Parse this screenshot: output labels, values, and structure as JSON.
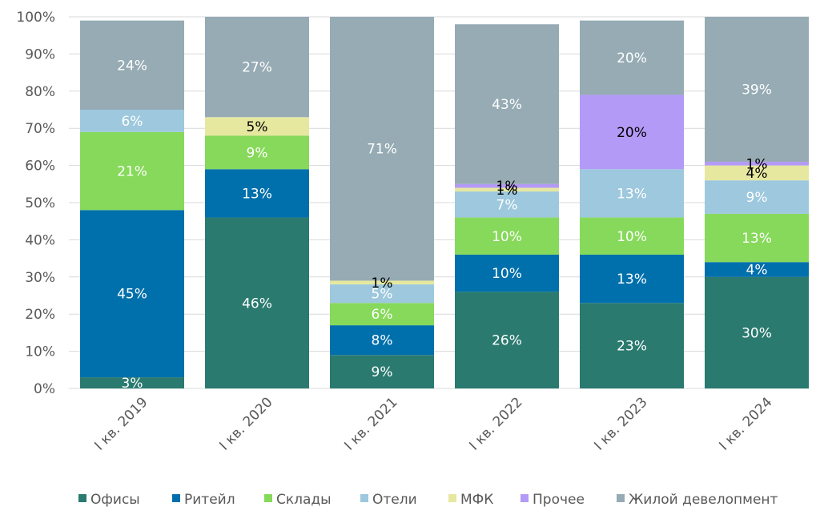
{
  "chart_data": {
    "type": "bar",
    "stacked": true,
    "title": "",
    "xlabel": "",
    "ylabel": "",
    "ylim": [
      0,
      100
    ],
    "ytick_values": [
      0,
      10,
      20,
      30,
      40,
      50,
      60,
      70,
      80,
      90,
      100
    ],
    "ytick_labels": [
      "0%",
      "10%",
      "20%",
      "30%",
      "40%",
      "50%",
      "60%",
      "70%",
      "80%",
      "90%",
      "100%"
    ],
    "grid": true,
    "legend_position": "bottom",
    "categories": [
      "I кв. 2019",
      "I кв. 2020",
      "I кв. 2021",
      "I кв. 2022",
      "I кв. 2023",
      "I кв. 2024"
    ],
    "series": [
      {
        "name": "Офисы",
        "color": "#2a7a6f",
        "label_color": "#ffffff",
        "values": [
          3,
          46,
          9,
          26,
          23,
          30
        ]
      },
      {
        "name": "Ритейл",
        "color": "#0070ac",
        "label_color": "#ffffff",
        "values": [
          45,
          13,
          8,
          10,
          13,
          4
        ]
      },
      {
        "name": "Склады",
        "color": "#86d95a",
        "label_color": "#ffffff",
        "values": [
          21,
          9,
          6,
          10,
          10,
          13
        ]
      },
      {
        "name": "Отели",
        "color": "#9dc8de",
        "label_color": "#ffffff",
        "values": [
          6,
          0,
          5,
          7,
          13,
          9
        ]
      },
      {
        "name": "МФК",
        "color": "#e6e8a0",
        "label_color": "#000000",
        "values": [
          0,
          5,
          1,
          1,
          0,
          4
        ]
      },
      {
        "name": "Прочее",
        "color": "#b49af7",
        "label_color": "#000000",
        "values": [
          0,
          0,
          0,
          1,
          20,
          1
        ]
      },
      {
        "name": "Жилой девелопмент",
        "color": "#96abb4",
        "label_color": "#ffffff",
        "values": [
          24,
          27,
          71,
          43,
          20,
          39
        ]
      }
    ],
    "data_labels": [
      [
        "3%",
        "46%",
        "9%",
        "26%",
        "23%",
        "30%"
      ],
      [
        "45%",
        "13%",
        "8%",
        "10%",
        "13%",
        "4%"
      ],
      [
        "21%",
        "9%",
        "6%",
        "10%",
        "10%",
        "13%"
      ],
      [
        "6%",
        "",
        "5%",
        "7%",
        "13%",
        "9%"
      ],
      [
        "",
        "5%",
        "1%",
        "1%",
        "",
        "4%"
      ],
      [
        "",
        "",
        "",
        "1%",
        "20%",
        "1%"
      ],
      [
        "24%",
        "27%",
        "71%",
        "43%",
        "20%",
        "39%"
      ]
    ]
  }
}
